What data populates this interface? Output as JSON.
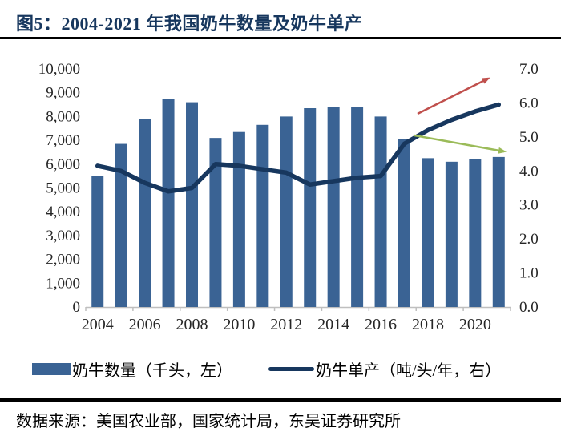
{
  "figure": {
    "title": "图5：2004-2021 年我国奶牛数量及奶牛单产",
    "source": "数据来源：美国农业部，国家统计局，东吴证券研究所"
  },
  "legend": {
    "bar_label": "奶牛数量（千头，左）",
    "line_label": "奶牛单产（吨/头/年，右）"
  },
  "colors": {
    "title_navy": "#17375E",
    "bar_blue": "#3A6394",
    "line_navy": "#17375E",
    "arrow_red": "#C0504D",
    "arrow_green": "#9BBB59",
    "axis_gray": "#BFBFBF",
    "tick_text": "#262626"
  },
  "chart_data": {
    "type": "combo-bar-line",
    "title": "2004-2021 年我国奶牛数量及奶牛单产",
    "categories": [
      "2004",
      "2005",
      "2006",
      "2007",
      "2008",
      "2009",
      "2010",
      "2011",
      "2012",
      "2013",
      "2014",
      "2015",
      "2016",
      "2017",
      "2018",
      "2019",
      "2020",
      "2021"
    ],
    "x_tick_labels": [
      "2004",
      "2006",
      "2008",
      "2010",
      "2012",
      "2014",
      "2016",
      "2018",
      "2020"
    ],
    "series": [
      {
        "name": "奶牛数量（千头，左）",
        "type": "bar",
        "axis": "left",
        "unit": "千头",
        "color": "#3A6394",
        "values": [
          5500,
          6850,
          7900,
          8750,
          8600,
          7100,
          7350,
          7650,
          8000,
          8350,
          8400,
          8400,
          8000,
          7050,
          6250,
          6100,
          6200,
          6300
        ]
      },
      {
        "name": "奶牛单产（吨/头/年，右）",
        "type": "line",
        "axis": "right",
        "unit": "吨/头/年",
        "color": "#17375E",
        "values": [
          4.15,
          4.0,
          3.65,
          3.4,
          3.5,
          4.2,
          4.15,
          4.05,
          3.95,
          3.6,
          3.7,
          3.8,
          3.85,
          4.8,
          5.2,
          5.5,
          5.75,
          5.95
        ]
      }
    ],
    "left_axis": {
      "min": 0,
      "max": 10000,
      "ticks": [
        "0",
        "1,000",
        "2,000",
        "3,000",
        "4,000",
        "5,000",
        "6,000",
        "7,000",
        "8,000",
        "9,000",
        "10,000"
      ]
    },
    "right_axis": {
      "min": 0,
      "max": 7,
      "ticks": [
        "0.0",
        "1.0",
        "2.0",
        "3.0",
        "4.0",
        "5.0",
        "6.0",
        "7.0"
      ]
    },
    "grid": false,
    "legend_position": "bottom",
    "annotations": [
      {
        "id": "rising-trend-arrow",
        "color": "#C0504D",
        "from": [
          521,
          86
        ],
        "to": [
          609,
          42
        ]
      },
      {
        "id": "falling-trend-arrow",
        "color": "#9BBB59",
        "from": [
          517,
          113
        ],
        "to": [
          629,
          133
        ]
      }
    ]
  }
}
